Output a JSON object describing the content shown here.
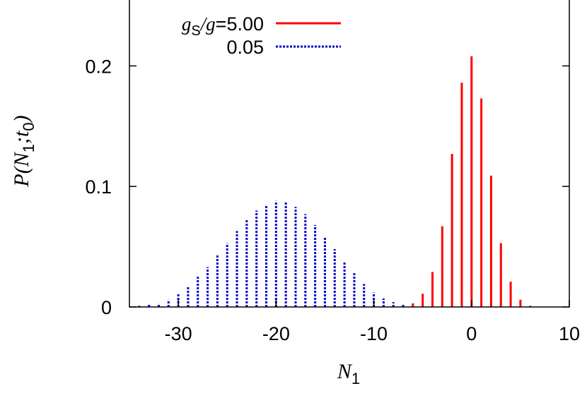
{
  "chart_data": {
    "type": "bar",
    "title": "",
    "xlabel": "N",
    "xlabel_sub": "1",
    "ylabel": "P(N",
    "ylabel_sub1": "1",
    "ylabel_mid": ";t",
    "ylabel_sub2": "0",
    "ylabel_end": ")",
    "xlim": [
      -35,
      10
    ],
    "ylim": [
      0,
      0.25
    ],
    "xticks": [
      -30,
      -20,
      -10,
      0,
      10
    ],
    "xtick_labels": [
      "-30",
      "-20",
      "-10",
      "0",
      "10"
    ],
    "yticks": [
      0,
      0.1,
      0.2
    ],
    "ytick_labels": [
      "0",
      "0.1",
      "0.2"
    ],
    "legend_position": "top-left",
    "legend": {
      "header_prefix": "g",
      "header_sub": "S",
      "header_mid": "/g",
      "header_eq": "=5.00",
      "second_label": "0.05"
    },
    "series": [
      {
        "name": "5.00",
        "color": "#ff0000",
        "style": "solid",
        "x": [
          -6,
          -5,
          -4,
          -3,
          -2,
          -1,
          0,
          1,
          2,
          3,
          4,
          5,
          6
        ],
        "values": [
          0.003,
          0.011,
          0.029,
          0.067,
          0.127,
          0.186,
          0.208,
          0.173,
          0.109,
          0.053,
          0.021,
          0.006,
          0.001
        ]
      },
      {
        "name": "0.05",
        "color": "#0000cc",
        "style": "dotted",
        "x": [
          -34,
          -33,
          -32,
          -31,
          -30,
          -29,
          -28,
          -27,
          -26,
          -25,
          -24,
          -23,
          -22,
          -21,
          -20,
          -19,
          -18,
          -17,
          -16,
          -15,
          -14,
          -13,
          -12,
          -11,
          -10,
          -9,
          -8,
          -7
        ],
        "values": [
          0.001,
          0.002,
          0.003,
          0.006,
          0.011,
          0.017,
          0.025,
          0.033,
          0.043,
          0.053,
          0.063,
          0.072,
          0.08,
          0.085,
          0.088,
          0.087,
          0.083,
          0.077,
          0.068,
          0.058,
          0.048,
          0.038,
          0.028,
          0.019,
          0.012,
          0.007,
          0.004,
          0.002
        ]
      }
    ]
  }
}
